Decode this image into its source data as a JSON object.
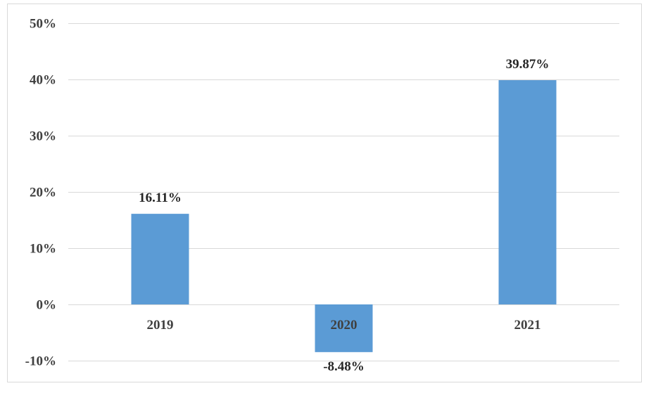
{
  "chart_data": {
    "type": "bar",
    "categories": [
      "2019",
      "2020",
      "2021"
    ],
    "values": [
      16.11,
      -8.48,
      39.87
    ],
    "data_labels": [
      "16.11%",
      "-8.48%",
      "39.87%"
    ],
    "y_tick_values": [
      50,
      40,
      30,
      20,
      10,
      0,
      -10
    ],
    "y_tick_labels": [
      "50%",
      "40%",
      "30%",
      "20%",
      "10%",
      "0%",
      "-10%"
    ],
    "ylim": [
      -10,
      50
    ],
    "grid": true,
    "legend": "none",
    "title": "",
    "xlabel": "",
    "ylabel": "",
    "bar_color": "#5b9bd5",
    "gridline_color": "#d9d9d9",
    "border_color": "#d9d9d9"
  }
}
